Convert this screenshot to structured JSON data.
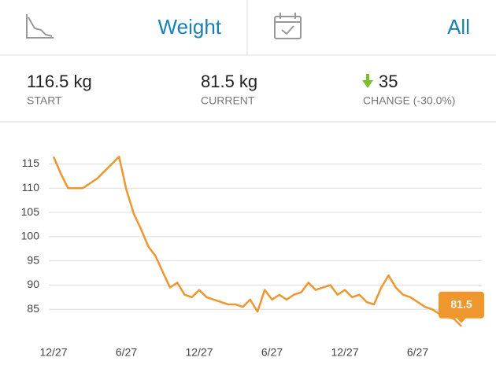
{
  "header": {
    "metric": "Weight",
    "range": "All"
  },
  "stats": [
    {
      "value": "116.5 kg",
      "label": "START"
    },
    {
      "value": "81.5 kg",
      "label": "CURRENT"
    },
    {
      "value": "35",
      "label": "CHANGE (-30.0%)"
    }
  ],
  "chart_data": {
    "type": "line",
    "color": "#f0962e",
    "grid": true,
    "categories": [
      "12/27",
      null,
      null,
      null,
      null,
      null,
      null,
      null,
      null,
      null,
      "6/27",
      null,
      null,
      null,
      null,
      null,
      null,
      null,
      null,
      null,
      "12/27",
      null,
      null,
      null,
      null,
      null,
      null,
      null,
      null,
      null,
      "6/27",
      null,
      null,
      null,
      null,
      null,
      null,
      null,
      null,
      null,
      "12/27",
      null,
      null,
      null,
      null,
      null,
      null,
      null,
      null,
      null,
      "6/27",
      null,
      null,
      null,
      null,
      null,
      null
    ],
    "values": [
      116.5,
      113,
      110,
      110,
      110,
      111,
      112,
      113.5,
      115,
      116.5,
      109.7,
      104.8,
      101.6,
      98,
      96,
      92.7,
      89.5,
      90.5,
      88,
      87.5,
      89,
      87.5,
      87,
      86.5,
      86,
      86,
      85.5,
      87,
      84.5,
      89,
      87,
      88,
      87,
      88,
      88.5,
      90.5,
      89,
      89.5,
      90,
      88,
      89,
      87.5,
      88,
      86.5,
      86,
      89.5,
      92,
      89.5,
      88,
      87.5,
      86.5,
      85.5,
      85,
      84,
      83.5,
      83,
      81.5
    ],
    "ylim": [
      80,
      118
    ],
    "yticks": [
      85,
      90,
      95,
      100,
      105,
      110,
      115
    ]
  }
}
